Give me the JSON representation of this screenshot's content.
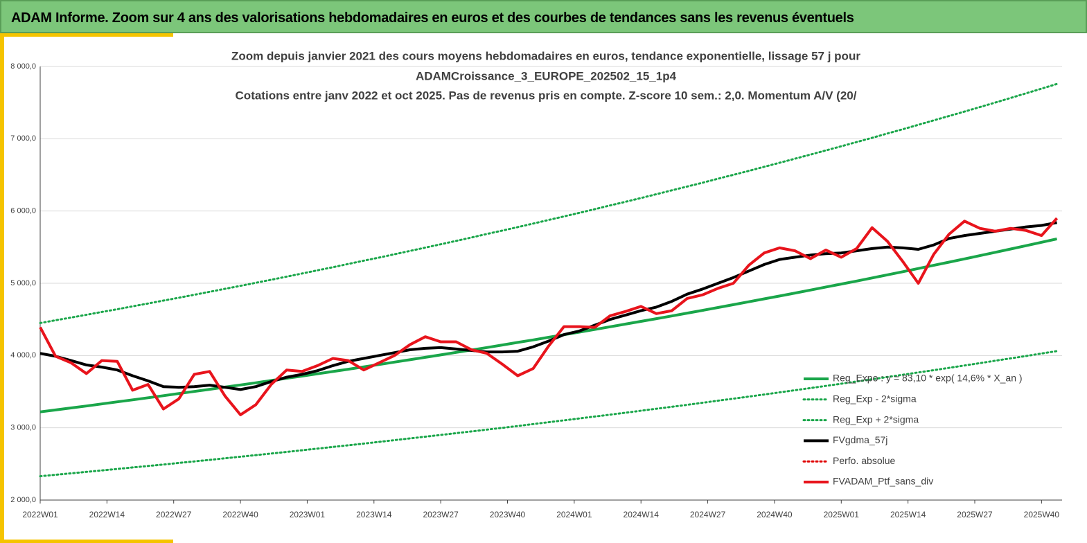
{
  "header": {
    "title": "ADAM Informe. Zoom sur 4 ans des valorisations hebdomadaires en euros et des courbes de tendances sans les revenus éventuels"
  },
  "chart_data": {
    "type": "line",
    "title": [
      "Zoom depuis janvier 2021 des cours moyens hebdomadaires  en euros, tendance exponentielle, lissage 57 j pour",
      "ADAMCroissance_3_EUROPE_202502_15_1p4",
      "Cotations entre janv 2022 et oct 2025. Pas de revenus pris en compte. Z-score 10 sem.: 2,0. Momentum A/V (20/"
    ],
    "x": [
      "2022W01",
      "2022W04",
      "2022W07",
      "2022W10",
      "2022W13",
      "2022W16",
      "2022W19",
      "2022W22",
      "2022W25",
      "2022W28",
      "2022W31",
      "2022W34",
      "2022W37",
      "2022W40",
      "2022W43",
      "2022W46",
      "2022W49",
      "2022W52",
      "2023W03",
      "2023W06",
      "2023W09",
      "2023W12",
      "2023W15",
      "2023W18",
      "2023W21",
      "2023W24",
      "2023W27",
      "2023W30",
      "2023W33",
      "2023W36",
      "2023W39",
      "2023W42",
      "2023W45",
      "2023W48",
      "2023W51",
      "2024W02",
      "2024W05",
      "2024W08",
      "2024W11",
      "2024W14",
      "2024W17",
      "2024W20",
      "2024W23",
      "2024W26",
      "2024W29",
      "2024W32",
      "2024W35",
      "2024W38",
      "2024W41",
      "2024W44",
      "2024W47",
      "2024W50",
      "2025W01",
      "2025W04",
      "2025W07",
      "2025W10",
      "2025W13",
      "2025W16",
      "2025W19",
      "2025W22",
      "2025W25",
      "2025W28",
      "2025W31",
      "2025W34",
      "2025W37",
      "2025W40",
      "2025W43"
    ],
    "xlim": [
      "2022W01",
      "2025W44"
    ],
    "xticks": [
      "2022W01",
      "2022W14",
      "2022W27",
      "2022W40",
      "2023W01",
      "2023W14",
      "2023W27",
      "2023W40",
      "2024W01",
      "2024W14",
      "2024W27",
      "2024W40",
      "2025W01",
      "2025W14",
      "2025W27",
      "2025W40"
    ],
    "ylim": [
      2000,
      8000
    ],
    "yticks": [
      {
        "value": 2000,
        "label": "2 000,0"
      },
      {
        "value": 3000,
        "label": "3 000,0"
      },
      {
        "value": 4000,
        "label": "4 000,0"
      },
      {
        "value": 5000,
        "label": "5 000,0"
      },
      {
        "value": 6000,
        "label": "6 000,0"
      },
      {
        "value": 7000,
        "label": "7 000,0"
      },
      {
        "value": 8000,
        "label": "8 000,0"
      }
    ],
    "grid": true,
    "legend": "lower-right",
    "series": [
      {
        "name": "Reg_Expo : y = 83,10 * exp( 14,6% *  X_an )",
        "color": "#1aa64a",
        "dash": "solid",
        "values": [
          3220,
          3247,
          3275,
          3302,
          3330,
          3359,
          3387,
          3416,
          3444,
          3474,
          3503,
          3533,
          3563,
          3593,
          3623,
          3654,
          3685,
          3716,
          3747,
          3779,
          3811,
          3843,
          3876,
          3909,
          3942,
          3975,
          4009,
          4043,
          4077,
          4111,
          4146,
          4181,
          4216,
          4252,
          4288,
          4324,
          4361,
          4398,
          4435,
          4473,
          4510,
          4548,
          4587,
          4625,
          4665,
          4704,
          4744,
          4784,
          4824,
          4865,
          4906,
          4948,
          4989,
          5031,
          5074,
          5117,
          5160,
          5204,
          5248,
          5292,
          5337,
          5382,
          5428,
          5474,
          5520,
          5567,
          5614
        ]
      },
      {
        "name": "Reg_Exp - 2*sigma",
        "color": "#1aa64a",
        "dash": "dotted",
        "values": [
          2330,
          2350,
          2370,
          2390,
          2410,
          2430,
          2451,
          2472,
          2492,
          2514,
          2535,
          2556,
          2578,
          2600,
          2622,
          2644,
          2666,
          2689,
          2712,
          2735,
          2758,
          2781,
          2805,
          2829,
          2853,
          2877,
          2901,
          2926,
          2950,
          2975,
          3000,
          3025,
          3051,
          3077,
          3103,
          3129,
          3156,
          3182,
          3209,
          3236,
          3263,
          3291,
          3318,
          3347,
          3375,
          3403,
          3432,
          3461,
          3490,
          3520,
          3550,
          3580,
          3610,
          3641,
          3672,
          3703,
          3734,
          3766,
          3797,
          3830,
          3862,
          3895,
          3928,
          3961,
          3994,
          4028,
          4062
        ]
      },
      {
        "name": "Reg_Exp + 2*sigma",
        "color": "#1aa64a",
        "dash": "dotted",
        "values": [
          4450,
          4488,
          4526,
          4564,
          4603,
          4641,
          4681,
          4720,
          4760,
          4800,
          4841,
          4882,
          4923,
          4965,
          5007,
          5049,
          5092,
          5135,
          5179,
          5222,
          5267,
          5312,
          5356,
          5402,
          5448,
          5494,
          5540,
          5587,
          5634,
          5682,
          5729,
          5777,
          5826,
          5876,
          5925,
          5975,
          6026,
          6077,
          6128,
          6180,
          6233,
          6286,
          6339,
          6392,
          6447,
          6501,
          6556,
          6612,
          6668,
          6724,
          6781,
          6838,
          6896,
          6954,
          7013,
          7073,
          7132,
          7193,
          7254,
          7315,
          7376,
          7438,
          7501,
          7565,
          7629,
          7693,
          7758
        ]
      },
      {
        "name": "FVgdma_57j",
        "color": "#000000",
        "dash": "solid",
        "values": [
          4030,
          3990,
          3930,
          3870,
          3840,
          3800,
          3720,
          3650,
          3570,
          3560,
          3570,
          3590,
          3560,
          3530,
          3570,
          3640,
          3700,
          3740,
          3790,
          3860,
          3920,
          3960,
          4000,
          4040,
          4080,
          4100,
          4110,
          4090,
          4070,
          4050,
          4050,
          4060,
          4120,
          4200,
          4290,
          4340,
          4420,
          4500,
          4560,
          4620,
          4670,
          4750,
          4850,
          4920,
          5000,
          5080,
          5170,
          5260,
          5330,
          5360,
          5390,
          5410,
          5420,
          5450,
          5480,
          5500,
          5490,
          5470,
          5530,
          5620,
          5660,
          5690,
          5720,
          5750,
          5780,
          5800,
          5840
        ]
      },
      {
        "name": "Perfo. absolue",
        "color": "#e00000",
        "dash": "dotted",
        "values": [
          null,
          null,
          null,
          null,
          null,
          null,
          null,
          null,
          null,
          null,
          null,
          null,
          null,
          null,
          null,
          null,
          null,
          null,
          null,
          null,
          null,
          null,
          null,
          null,
          null,
          null,
          null,
          null,
          null,
          null,
          null,
          null,
          null,
          null,
          null,
          null,
          null,
          null,
          null,
          null,
          null,
          null,
          null,
          null,
          null,
          null,
          null,
          null,
          null,
          null,
          null,
          null,
          null,
          null,
          null,
          null,
          null,
          null,
          null,
          null,
          null,
          null,
          null,
          null,
          null,
          null,
          null
        ]
      },
      {
        "name": "FVADAM_Ptf_sans_div",
        "color": "#e8141c",
        "dash": "solid",
        "values": [
          4390,
          3990,
          3900,
          3750,
          3930,
          3920,
          3520,
          3600,
          3260,
          3400,
          3740,
          3780,
          3440,
          3180,
          3320,
          3600,
          3800,
          3780,
          3860,
          3960,
          3930,
          3800,
          3900,
          4000,
          4150,
          4260,
          4190,
          4190,
          4080,
          4030,
          3880,
          3720,
          3820,
          4130,
          4400,
          4400,
          4390,
          4550,
          4610,
          4680,
          4580,
          4620,
          4790,
          4840,
          4930,
          5000,
          5250,
          5420,
          5490,
          5450,
          5340,
          5460,
          5360,
          5480,
          5770,
          5580,
          5300,
          5000,
          5400,
          5680,
          5860,
          5760,
          5720,
          5760,
          5730,
          5660,
          5900
        ]
      }
    ]
  }
}
